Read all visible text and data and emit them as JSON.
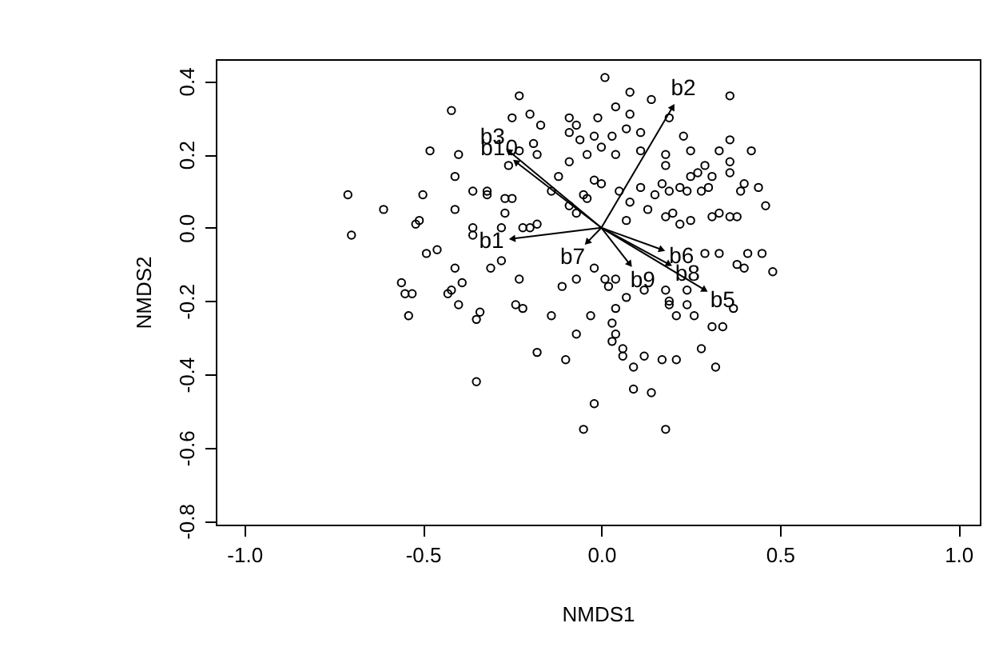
{
  "chart_data": {
    "type": "scatter",
    "xlabel": "NMDS1",
    "ylabel": "NMDS2",
    "xlim": [
      -1.08,
      1.06
    ],
    "ylim": [
      -0.81,
      0.46
    ],
    "xticks": [
      {
        "value": -1,
        "label": "-1.0"
      },
      {
        "value": -0.5,
        "label": "-0.5"
      },
      {
        "value": 0,
        "label": "0.0"
      },
      {
        "value": 0.5,
        "label": "0.5"
      },
      {
        "value": 1,
        "label": "1.0"
      }
    ],
    "yticks": [
      {
        "value": -0.8,
        "label": "-0.8"
      },
      {
        "value": -0.6,
        "label": "-0.6"
      },
      {
        "value": -0.4,
        "label": "-0.4"
      },
      {
        "value": -0.2,
        "label": "-0.2"
      },
      {
        "value": 0,
        "label": "0.0"
      },
      {
        "value": 0.2,
        "label": "0.2"
      },
      {
        "value": 0.4,
        "label": "0.4"
      }
    ],
    "marker": "circle",
    "grid": false,
    "series": [
      {
        "color": "#000000",
        "x": [
          -0.23,
          -0.42,
          -0.25,
          -0.2,
          -0.17,
          -0.09,
          -0.48,
          -0.4,
          -0.19,
          -0.23,
          -0.18,
          -0.09,
          -0.26,
          -0.41,
          -0.12,
          -0.71,
          -0.5,
          -0.36,
          -0.32,
          -0.32,
          -0.27,
          -0.25,
          -0.61,
          -0.41,
          -0.27,
          -0.51,
          -0.52,
          -0.7,
          -0.36,
          -0.36,
          -0.28,
          -0.22,
          -0.18,
          -0.2,
          -0.14,
          -0.09,
          -0.07,
          -0.05,
          -0.04,
          -0.02,
          0.0,
          -0.09,
          -0.07,
          -0.06,
          -0.02,
          -0.01,
          -0.04,
          0.01,
          0.08,
          0.14,
          0.36,
          0.04,
          0.08,
          0.19,
          0.03,
          0.07,
          0.11,
          0.0,
          0.04,
          0.11,
          0.23,
          0.36,
          0.42,
          0.18,
          0.25,
          0.33,
          0.36,
          0.18,
          0.29,
          0.27,
          0.25,
          0.31,
          0.36,
          0.4,
          0.44,
          0.11,
          0.17,
          0.15,
          0.19,
          0.22,
          0.24,
          0.28,
          0.3,
          0.39,
          0.46,
          0.05,
          0.08,
          0.13,
          0.18,
          0.2,
          0.25,
          0.22,
          0.31,
          0.33,
          0.36,
          0.38,
          0.07,
          -0.49,
          -0.46,
          -0.41,
          -0.56,
          -0.55,
          -0.53,
          -0.39,
          -0.43,
          -0.42,
          -0.4,
          -0.54,
          -0.34,
          -0.35,
          -0.31,
          -0.28,
          -0.23,
          -0.24,
          -0.22,
          -0.14,
          -0.11,
          -0.07,
          -0.03,
          -0.07,
          -0.18,
          -0.1,
          -0.35,
          -0.02,
          -0.05,
          0.41,
          0.45,
          0.48,
          0.38,
          0.4,
          0.33,
          0.29,
          -0.02,
          0.01,
          0.04,
          0.02,
          0.04,
          0.07,
          0.12,
          0.18,
          0.19,
          0.19,
          0.24,
          0.24,
          0.21,
          0.26,
          0.31,
          0.34,
          0.37,
          0.03,
          0.04,
          0.03,
          0.06,
          0.06,
          0.12,
          0.09,
          0.17,
          0.21,
          0.28,
          0.32,
          0.09,
          0.14,
          0.18
        ],
        "values": [
          0.36,
          0.32,
          0.3,
          0.31,
          0.28,
          0.3,
          0.21,
          0.2,
          0.23,
          0.21,
          0.2,
          0.18,
          0.17,
          0.14,
          0.14,
          0.09,
          0.09,
          0.1,
          0.1,
          0.09,
          0.08,
          0.08,
          0.05,
          0.05,
          0.04,
          0.02,
          0.01,
          -0.02,
          0.0,
          -0.02,
          0.0,
          0.0,
          0.01,
          0.0,
          0.1,
          0.06,
          0.04,
          0.09,
          0.08,
          0.13,
          0.12,
          0.26,
          0.28,
          0.24,
          0.25,
          0.3,
          0.2,
          0.41,
          0.37,
          0.35,
          0.36,
          0.33,
          0.31,
          0.3,
          0.25,
          0.27,
          0.26,
          0.22,
          0.2,
          0.21,
          0.25,
          0.24,
          0.21,
          0.2,
          0.21,
          0.21,
          0.18,
          0.17,
          0.17,
          0.15,
          0.14,
          0.14,
          0.15,
          0.12,
          0.11,
          0.11,
          0.12,
          0.09,
          0.1,
          0.11,
          0.1,
          0.1,
          0.11,
          0.1,
          0.06,
          0.1,
          0.07,
          0.05,
          0.03,
          0.04,
          0.02,
          0.01,
          0.03,
          0.04,
          0.03,
          0.03,
          0.02,
          -0.07,
          -0.06,
          -0.11,
          -0.15,
          -0.18,
          -0.18,
          -0.15,
          -0.18,
          -0.17,
          -0.21,
          -0.24,
          -0.23,
          -0.25,
          -0.11,
          -0.09,
          -0.14,
          -0.21,
          -0.22,
          -0.24,
          -0.16,
          -0.14,
          -0.24,
          -0.29,
          -0.34,
          -0.36,
          -0.42,
          -0.48,
          -0.55,
          -0.07,
          -0.07,
          -0.12,
          -0.1,
          -0.11,
          -0.07,
          -0.07,
          -0.11,
          -0.14,
          -0.14,
          -0.16,
          -0.22,
          -0.19,
          -0.17,
          -0.17,
          -0.2,
          -0.21,
          -0.17,
          -0.21,
          -0.24,
          -0.24,
          -0.27,
          -0.27,
          -0.22,
          -0.26,
          -0.29,
          -0.31,
          -0.33,
          -0.35,
          -0.35,
          -0.38,
          -0.36,
          -0.36,
          -0.33,
          -0.38,
          -0.44,
          -0.45,
          -0.55
        ]
      }
    ],
    "annotations": [
      {
        "text": "b2",
        "x": 0.2,
        "y": 0.33
      },
      {
        "text": "b3",
        "x": -0.26,
        "y": 0.21
      },
      {
        "text": "b10",
        "x": -0.24,
        "y": 0.18
      },
      {
        "text": "b1",
        "x": -0.25,
        "y": -0.03
      },
      {
        "text": "b7",
        "x": -0.04,
        "y": -0.04
      },
      {
        "text": "b6",
        "x": 0.17,
        "y": -0.06
      },
      {
        "text": "b8",
        "x": 0.19,
        "y": -0.1
      },
      {
        "text": "b5",
        "x": 0.29,
        "y": -0.17
      },
      {
        "text": "b9",
        "x": 0.08,
        "y": -0.1
      }
    ]
  }
}
